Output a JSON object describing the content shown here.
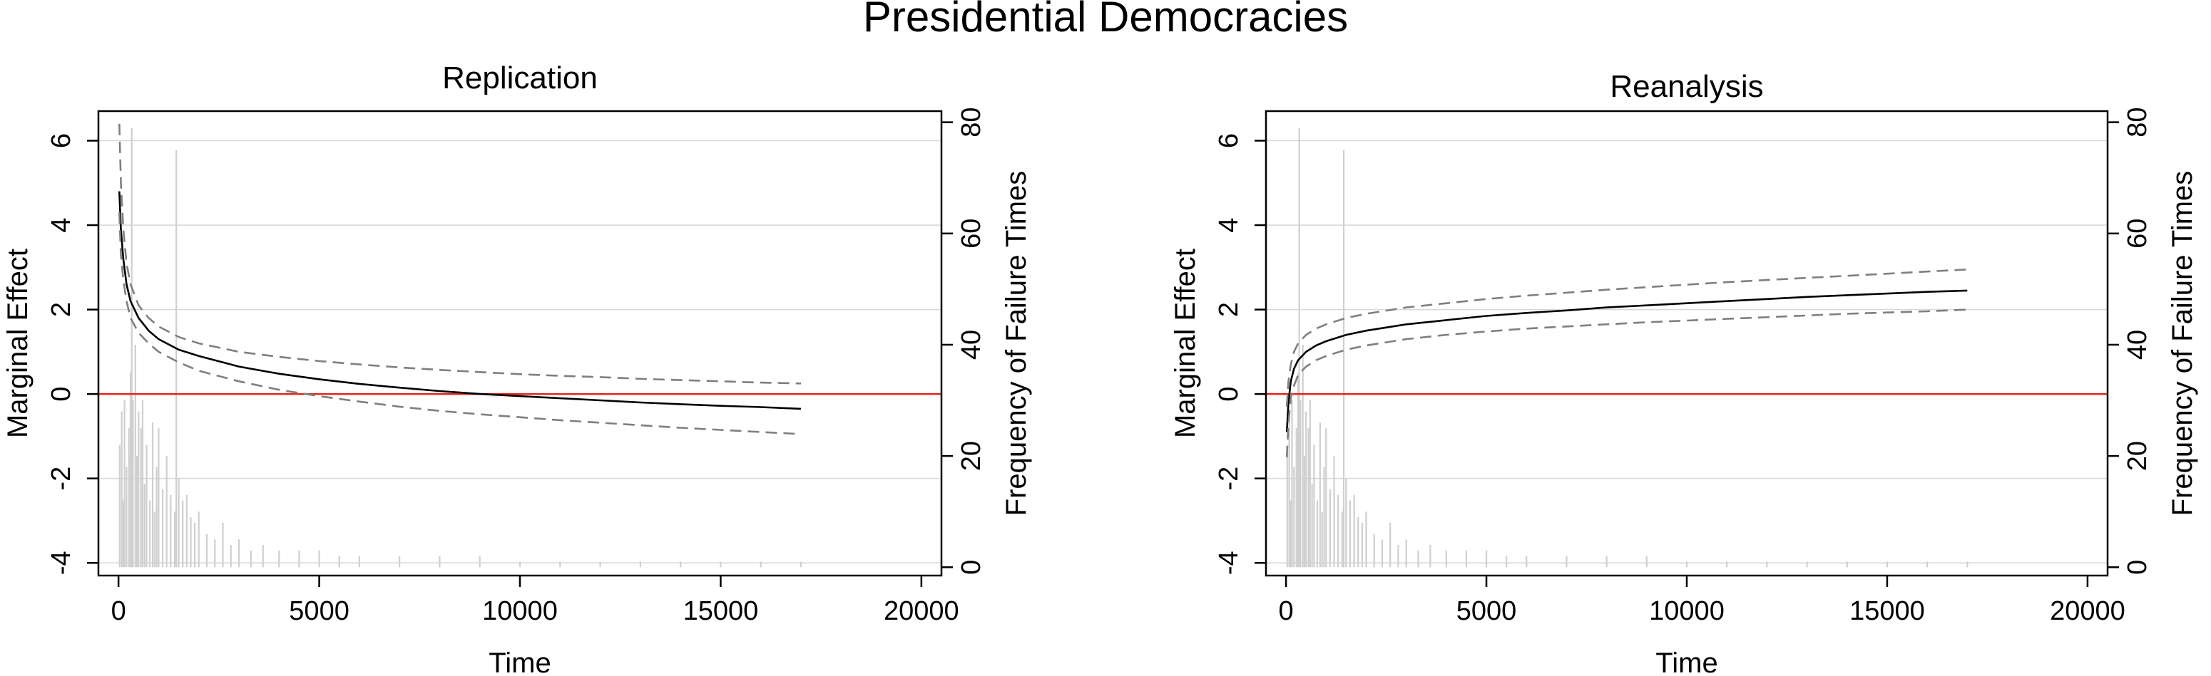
{
  "figure": {
    "title": "Presidential Democracies"
  },
  "chart_data": [
    {
      "type": "line",
      "title": "Replication",
      "xlabel": "Time",
      "ylabel": "Marginal Effect",
      "y2label": "Frequency of Failure Times",
      "xlim": [
        -500,
        20500
      ],
      "ylim": [
        -4.3,
        6.7
      ],
      "y2lim": [
        -1.5,
        82
      ],
      "xticks": [
        "0",
        "5000",
        "10000",
        "15000",
        "20000"
      ],
      "yticks": [
        "-4",
        "-2",
        "0",
        "2",
        "4",
        "6"
      ],
      "y2ticks": [
        "0",
        "20",
        "40",
        "60",
        "80"
      ],
      "xtick_values": [
        0,
        5000,
        10000,
        15000,
        20000
      ],
      "ytick_values": [
        -4,
        -2,
        0,
        2,
        4,
        6
      ],
      "y2tick_values": [
        0,
        20,
        40,
        60,
        80
      ],
      "grid": true,
      "reference_line_y": 0,
      "colors": {
        "mean": "#000000",
        "ci": "#7f7f7f",
        "reference": "#e8231b",
        "histogram": "#cfcfcf"
      },
      "series": [
        {
          "role": "mean",
          "x": [
            20,
            60,
            120,
            200,
            300,
            500,
            750,
            1000,
            1500,
            2000,
            3000,
            4000,
            5000,
            6000,
            7000,
            8000,
            9000,
            10000,
            11000,
            12000,
            13000,
            14000,
            15000,
            16000,
            17000
          ],
          "y": [
            4.8,
            3.9,
            3.2,
            2.6,
            2.2,
            1.8,
            1.5,
            1.3,
            1.05,
            0.9,
            0.65,
            0.48,
            0.35,
            0.24,
            0.15,
            0.07,
            0.0,
            -0.05,
            -0.1,
            -0.15,
            -0.2,
            -0.24,
            -0.28,
            -0.31,
            -0.35
          ]
        },
        {
          "role": "upper",
          "x": [
            20,
            60,
            120,
            200,
            300,
            500,
            750,
            1000,
            1500,
            2000,
            3000,
            4000,
            5000,
            6000,
            7000,
            8000,
            9000,
            10000,
            11000,
            12000,
            13000,
            14000,
            15000,
            16000,
            17000
          ],
          "y": [
            6.4,
            5.0,
            3.9,
            3.1,
            2.6,
            2.1,
            1.8,
            1.6,
            1.35,
            1.2,
            1.0,
            0.88,
            0.78,
            0.7,
            0.63,
            0.57,
            0.52,
            0.47,
            0.43,
            0.4,
            0.36,
            0.33,
            0.3,
            0.27,
            0.25
          ]
        },
        {
          "role": "lower",
          "x": [
            20,
            60,
            120,
            200,
            300,
            500,
            750,
            1000,
            1500,
            2000,
            3000,
            4000,
            5000,
            6000,
            7000,
            8000,
            9000,
            10000,
            11000,
            12000,
            13000,
            14000,
            15000,
            16000,
            17000
          ],
          "y": [
            4.3,
            3.3,
            2.7,
            2.2,
            1.8,
            1.45,
            1.2,
            1.0,
            0.75,
            0.55,
            0.3,
            0.1,
            -0.05,
            -0.18,
            -0.3,
            -0.4,
            -0.48,
            -0.55,
            -0.62,
            -0.68,
            -0.74,
            -0.8,
            -0.85,
            -0.9,
            -0.95
          ]
        }
      ],
      "histogram": {
        "x": [
          30,
          80,
          120,
          150,
          200,
          260,
          300,
          330,
          360,
          420,
          460,
          500,
          560,
          600,
          650,
          700,
          780,
          850,
          900,
          950,
          1000,
          1100,
          1200,
          1300,
          1400,
          1440,
          1500,
          1600,
          1700,
          1800,
          1900,
          2000,
          2200,
          2400,
          2600,
          2800,
          3000,
          3300,
          3600,
          4000,
          4500,
          5000,
          5500,
          6000,
          7000,
          8000,
          9000,
          10000,
          11000,
          12000,
          13000,
          14000,
          15000,
          16000,
          17000
        ],
        "count": [
          22,
          28,
          12,
          30,
          18,
          25,
          35,
          79,
          30,
          40,
          20,
          28,
          25,
          30,
          15,
          22,
          12,
          26,
          10,
          18,
          25,
          14,
          20,
          13,
          10,
          75,
          16,
          12,
          13,
          9,
          8,
          10,
          6,
          5,
          8,
          4,
          5,
          3,
          4,
          3,
          3,
          3,
          2,
          2,
          2,
          2,
          2,
          1,
          1,
          1,
          1,
          1,
          1,
          1,
          1
        ]
      }
    },
    {
      "type": "line",
      "title": "Reanalysis",
      "xlabel": "Time",
      "ylabel": "Marginal Effect",
      "y2label": "Frequency of Failure Times",
      "xlim": [
        -500,
        20500
      ],
      "ylim": [
        -4.3,
        6.7
      ],
      "y2lim": [
        -1.5,
        82
      ],
      "xticks": [
        "0",
        "5000",
        "10000",
        "15000",
        "20000"
      ],
      "yticks": [
        "-4",
        "-2",
        "0",
        "2",
        "4",
        "6"
      ],
      "y2ticks": [
        "0",
        "20",
        "40",
        "60",
        "80"
      ],
      "xtick_values": [
        0,
        5000,
        10000,
        15000,
        20000
      ],
      "ytick_values": [
        -4,
        -2,
        0,
        2,
        4,
        6
      ],
      "y2tick_values": [
        0,
        20,
        40,
        60,
        80
      ],
      "grid": true,
      "reference_line_y": 0,
      "colors": {
        "mean": "#000000",
        "ci": "#7f7f7f",
        "reference": "#e8231b",
        "histogram": "#cfcfcf"
      },
      "series": [
        {
          "role": "mean",
          "x": [
            20,
            60,
            120,
            200,
            300,
            500,
            750,
            1000,
            1500,
            2000,
            3000,
            4000,
            5000,
            6000,
            7000,
            8000,
            9000,
            10000,
            11000,
            12000,
            13000,
            14000,
            15000,
            16000,
            17000
          ],
          "y": [
            -0.9,
            -0.2,
            0.3,
            0.6,
            0.8,
            1.0,
            1.15,
            1.25,
            1.4,
            1.5,
            1.65,
            1.75,
            1.85,
            1.92,
            1.98,
            2.05,
            2.1,
            2.15,
            2.2,
            2.25,
            2.3,
            2.34,
            2.38,
            2.42,
            2.45
          ]
        },
        {
          "role": "upper",
          "x": [
            20,
            60,
            120,
            200,
            300,
            500,
            750,
            1000,
            1500,
            2000,
            3000,
            4000,
            5000,
            6000,
            7000,
            8000,
            9000,
            10000,
            11000,
            12000,
            13000,
            14000,
            15000,
            16000,
            17000
          ],
          "y": [
            -0.3,
            0.3,
            0.7,
            1.0,
            1.2,
            1.4,
            1.55,
            1.65,
            1.8,
            1.9,
            2.05,
            2.15,
            2.25,
            2.33,
            2.4,
            2.47,
            2.53,
            2.59,
            2.65,
            2.7,
            2.75,
            2.8,
            2.85,
            2.9,
            2.95
          ]
        },
        {
          "role": "lower",
          "x": [
            20,
            60,
            120,
            200,
            300,
            500,
            750,
            1000,
            1500,
            2000,
            3000,
            4000,
            5000,
            6000,
            7000,
            8000,
            9000,
            10000,
            11000,
            12000,
            13000,
            14000,
            15000,
            16000,
            17000
          ],
          "y": [
            -1.5,
            -0.7,
            -0.1,
            0.2,
            0.45,
            0.65,
            0.8,
            0.9,
            1.05,
            1.15,
            1.3,
            1.4,
            1.48,
            1.55,
            1.6,
            1.65,
            1.7,
            1.74,
            1.78,
            1.82,
            1.86,
            1.9,
            1.93,
            1.96,
            2.0
          ]
        }
      ],
      "histogram": {
        "x": [
          30,
          80,
          120,
          150,
          200,
          260,
          300,
          330,
          360,
          420,
          460,
          500,
          560,
          600,
          650,
          700,
          780,
          850,
          900,
          950,
          1000,
          1100,
          1200,
          1300,
          1400,
          1440,
          1500,
          1600,
          1700,
          1800,
          1900,
          2000,
          2200,
          2400,
          2600,
          2800,
          3000,
          3300,
          3600,
          4000,
          4500,
          5000,
          5500,
          6000,
          7000,
          8000,
          9000,
          10000,
          11000,
          12000,
          13000,
          14000,
          15000,
          16000,
          17000
        ],
        "count": [
          22,
          28,
          12,
          30,
          18,
          25,
          35,
          79,
          30,
          40,
          20,
          28,
          25,
          30,
          15,
          22,
          12,
          26,
          10,
          18,
          25,
          14,
          20,
          13,
          10,
          75,
          16,
          12,
          13,
          9,
          8,
          10,
          6,
          5,
          8,
          4,
          5,
          3,
          4,
          3,
          3,
          3,
          2,
          2,
          2,
          2,
          2,
          1,
          1,
          1,
          1,
          1,
          1,
          1,
          1
        ]
      }
    }
  ]
}
